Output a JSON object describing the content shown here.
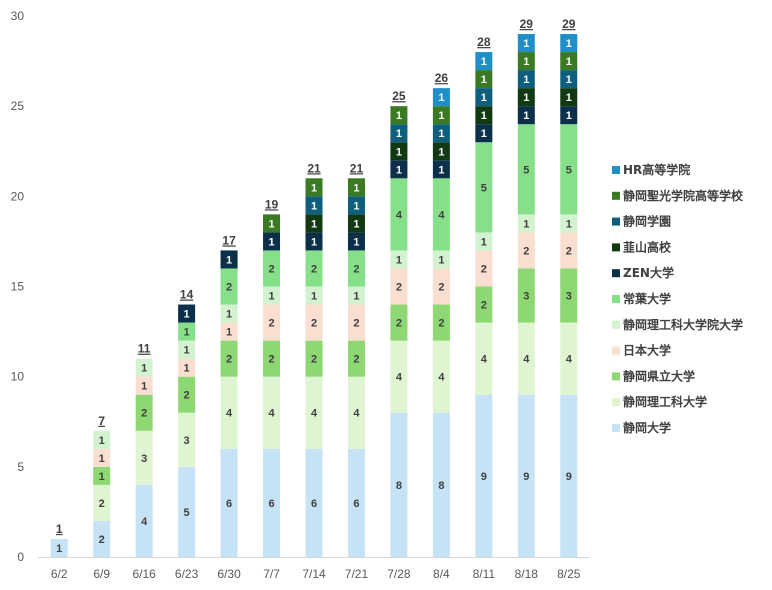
{
  "chart_data": {
    "type": "bar",
    "stacked": true,
    "categories": [
      "6/2",
      "6/9",
      "6/16",
      "6/23",
      "6/30",
      "7/7",
      "7/14",
      "7/21",
      "7/28",
      "8/4",
      "8/11",
      "8/18",
      "8/25"
    ],
    "ylim": [
      0,
      30
    ],
    "yticks": [
      0,
      5,
      10,
      15,
      20,
      25,
      30
    ],
    "grid": false,
    "legend_position": "right",
    "totals": [
      1,
      7,
      11,
      14,
      17,
      19,
      21,
      21,
      25,
      26,
      28,
      29,
      29
    ],
    "series": [
      {
        "name": "静岡大学",
        "color": "#c5e3f5",
        "label_color": "#404040",
        "values": [
          1,
          2,
          4,
          5,
          6,
          6,
          6,
          6,
          8,
          8,
          9,
          9,
          9
        ]
      },
      {
        "name": "静岡理工科大学",
        "color": "#dff5d2",
        "label_color": "#404040",
        "values": [
          0,
          2,
          3,
          3,
          4,
          4,
          4,
          4,
          4,
          4,
          4,
          4,
          4
        ]
      },
      {
        "name": "静岡県立大学",
        "color": "#8ed873",
        "label_color": "#404040",
        "values": [
          0,
          1,
          2,
          2,
          2,
          2,
          2,
          2,
          2,
          2,
          2,
          3,
          3
        ]
      },
      {
        "name": "日本大学",
        "color": "#fadfd0",
        "label_color": "#404040",
        "values": [
          0,
          1,
          1,
          1,
          1,
          2,
          2,
          2,
          2,
          2,
          2,
          2,
          2
        ]
      },
      {
        "name": "静岡理工科大学院大学",
        "color": "#d2f2d0",
        "label_color": "#404040",
        "values": [
          0,
          1,
          1,
          1,
          1,
          1,
          1,
          1,
          1,
          1,
          1,
          1,
          1
        ]
      },
      {
        "name": "常葉大学",
        "color": "#86e08a",
        "label_color": "#404040",
        "values": [
          0,
          0,
          0,
          1,
          2,
          2,
          2,
          2,
          4,
          4,
          5,
          5,
          5
        ]
      },
      {
        "name": "ZEN大学",
        "color": "#0c2f4a",
        "label_color": "#ffffff",
        "values": [
          0,
          0,
          0,
          1,
          1,
          1,
          1,
          1,
          1,
          1,
          1,
          1,
          1
        ]
      },
      {
        "name": "韮山高校",
        "color": "#123a12",
        "label_color": "#ffffff",
        "values": [
          0,
          0,
          0,
          0,
          0,
          0,
          1,
          1,
          1,
          1,
          1,
          1,
          1
        ]
      },
      {
        "name": "静岡学園",
        "color": "#0e5f7e",
        "label_color": "#ffffff",
        "values": [
          0,
          0,
          0,
          0,
          0,
          0,
          1,
          1,
          1,
          1,
          1,
          1,
          1
        ]
      },
      {
        "name": "静岡聖光学院高等学校",
        "color": "#3a7a22",
        "label_color": "#ffffff",
        "values": [
          0,
          0,
          0,
          0,
          0,
          1,
          1,
          1,
          1,
          1,
          1,
          1,
          1
        ]
      },
      {
        "name": "HR高等学院",
        "color": "#1f8fc6",
        "label_color": "#ffffff",
        "values": [
          0,
          0,
          0,
          0,
          0,
          0,
          0,
          0,
          0,
          1,
          1,
          1,
          1
        ]
      }
    ]
  }
}
